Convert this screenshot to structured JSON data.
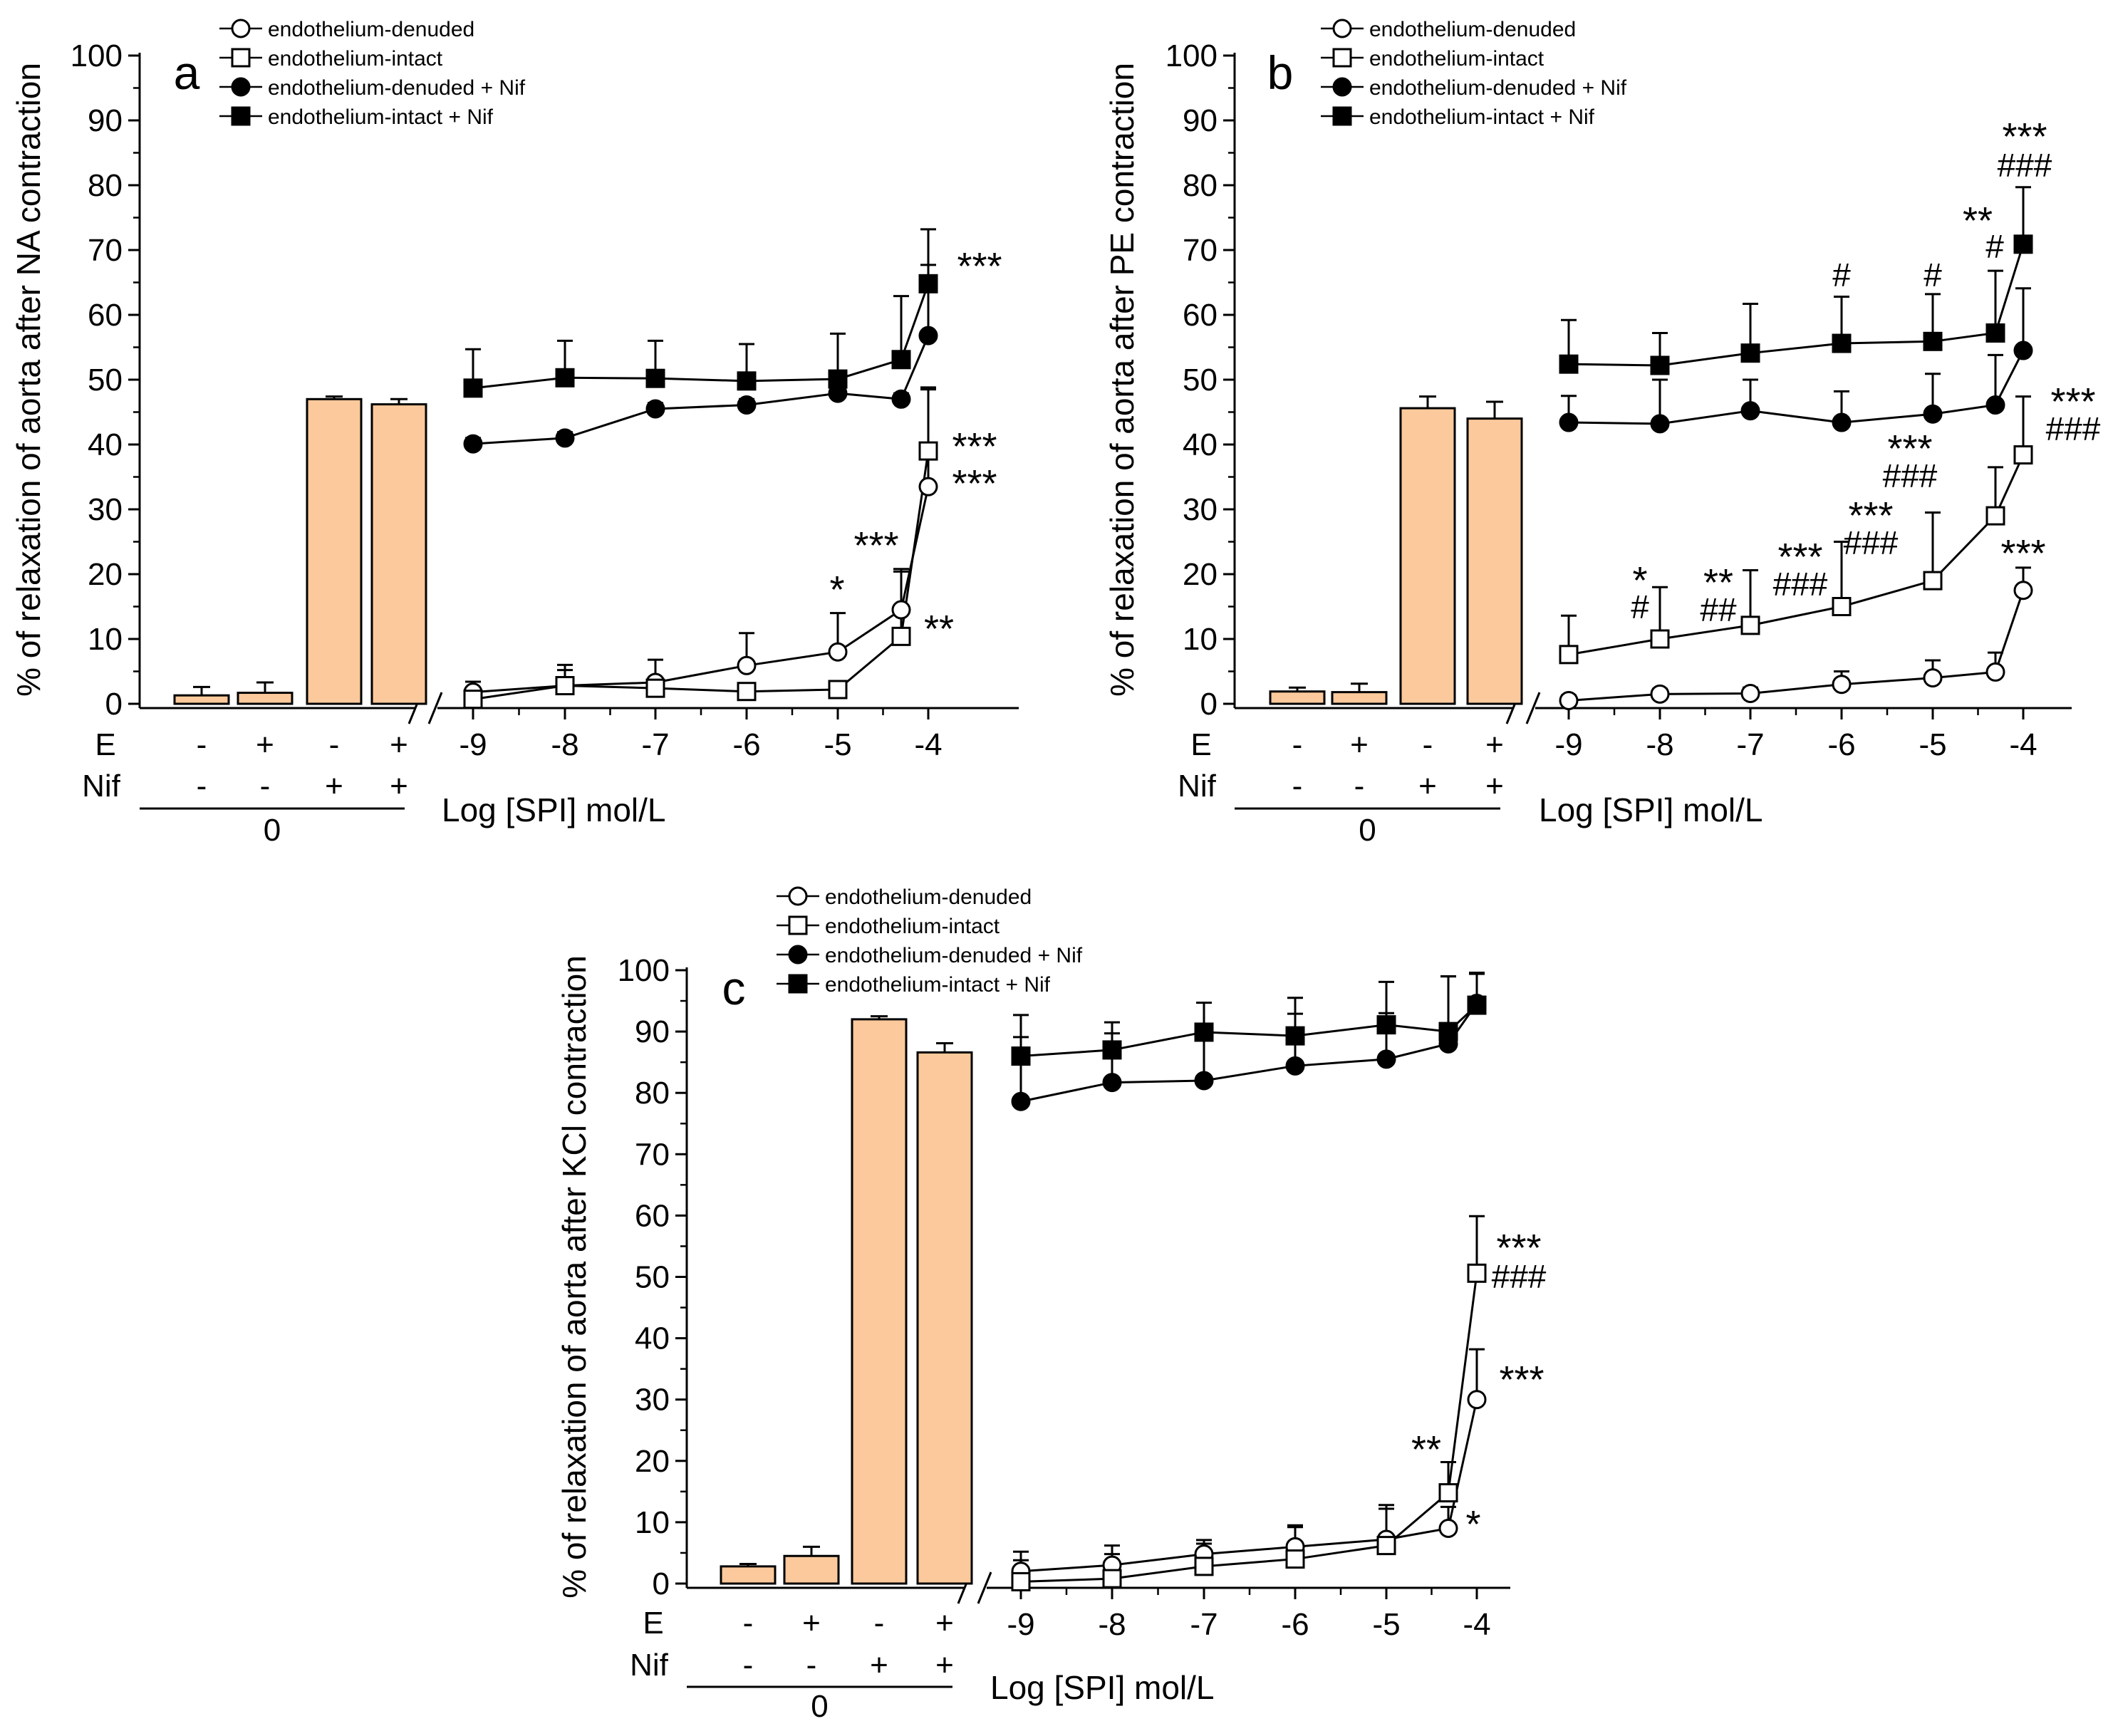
{
  "chart_data": [
    {
      "type": "bar+line",
      "panel": "a",
      "ylabel": "% of relaxation of aorta after NA contraction",
      "xlabel": "Log [SPI] mol/L",
      "ylim": [
        0,
        100
      ],
      "yticks": [
        "0",
        "10",
        "20",
        "30",
        "40",
        "50",
        "60",
        "70",
        "80",
        "90",
        "100"
      ],
      "xticks": [
        "-9",
        "-8",
        "-7",
        "-6",
        "-5",
        "-4"
      ],
      "legend": [
        "endothelium-denuded",
        "endothelium-intact",
        "endothelium-denuded + Nif",
        "endothelium-intact + Nif"
      ],
      "legend_position": "top",
      "bar_rows": {
        "E_label": "E",
        "E": [
          "-",
          "+",
          "-",
          "+"
        ],
        "Nif_label": "Nif",
        "Nif": [
          "-",
          "-",
          "+",
          "+"
        ],
        "group_label": "0"
      },
      "bars": [
        {
          "value": 1.3,
          "err": 1.3
        },
        {
          "value": 1.7,
          "err": 1.6
        },
        {
          "value": 47.0,
          "err": 0.4
        },
        {
          "value": 46.2,
          "err": 0.8
        }
      ],
      "x": [
        -9,
        -8,
        -7,
        -6,
        -5,
        -4.3,
        -4
      ],
      "series": [
        {
          "name": "endothelium-denuded",
          "marker": "open-circle",
          "values": [
            1.8,
            2.8,
            3.3,
            5.9,
            8.0,
            14.5,
            33.5
          ],
          "errors": [
            1.6,
            3.2,
            3.5,
            5.0,
            6.0,
            6.3,
            15.0
          ]
        },
        {
          "name": "endothelium-intact",
          "marker": "open-square",
          "values": [
            0.7,
            2.8,
            2.4,
            1.9,
            2.2,
            10.4,
            39.0
          ],
          "errors": [
            1.5,
            2.4,
            1.5,
            0.5,
            0.8,
            10.0,
            9.8
          ]
        },
        {
          "name": "endothelium-denuded + Nif",
          "marker": "filled-circle",
          "values": [
            40.1,
            41.0,
            45.5,
            46.1,
            47.9,
            47.0,
            56.8
          ],
          "errors": [
            0.9,
            0.9,
            0.9,
            0.9,
            0.9,
            0.9,
            10.9
          ]
        },
        {
          "name": "endothelium-intact + Nif",
          "marker": "filled-square",
          "values": [
            48.7,
            50.3,
            50.2,
            49.8,
            50.1,
            53.1,
            64.8
          ],
          "errors": [
            6.0,
            5.7,
            5.8,
            5.7,
            7.0,
            9.8,
            8.4
          ]
        }
      ],
      "annotations": [
        {
          "text": "***",
          "x": -4,
          "y": 64.8
        },
        {
          "text": "***",
          "x": -4,
          "y": 39.0
        },
        {
          "text": "***",
          "x": -4,
          "y": 33.5
        },
        {
          "text": "**",
          "x": -4,
          "y": 10.4
        },
        {
          "text": "***",
          "x": -4.3,
          "y": 21.0
        },
        {
          "text": "*",
          "x": -5,
          "y": 14.0
        }
      ]
    },
    {
      "type": "bar+line",
      "panel": "b",
      "ylabel": "% of relaxation of aorta after PE contraction",
      "xlabel": "Log [SPI] mol/L",
      "ylim": [
        0,
        100
      ],
      "yticks": [
        "0",
        "10",
        "20",
        "30",
        "40",
        "50",
        "60",
        "70",
        "80",
        "90",
        "100"
      ],
      "xticks": [
        "-9",
        "-8",
        "-7",
        "-6",
        "-5",
        "-4"
      ],
      "legend": [
        "endothelium-denuded",
        "endothelium-intact",
        "endothelium-denuded + Nif",
        "endothelium-intact + Nif"
      ],
      "legend_position": "top",
      "bar_rows": {
        "E_label": "E",
        "E": [
          "-",
          "+",
          "-",
          "+"
        ],
        "Nif_label": "Nif",
        "Nif": [
          "-",
          "-",
          "+",
          "+"
        ],
        "group_label": "0"
      },
      "bars": [
        {
          "value": 1.9,
          "err": 0.6
        },
        {
          "value": 1.8,
          "err": 1.3
        },
        {
          "value": 45.6,
          "err": 1.8
        },
        {
          "value": 44.0,
          "err": 2.6
        }
      ],
      "x": [
        -9,
        -8,
        -7,
        -6,
        -5,
        -4.3,
        -4
      ],
      "series": [
        {
          "name": "endothelium-denuded",
          "marker": "open-circle",
          "values": [
            0.5,
            1.5,
            1.6,
            3.0,
            4.0,
            4.9,
            17.5
          ],
          "errors": [
            0.8,
            0.8,
            0.9,
            2.0,
            2.7,
            3.0,
            3.5
          ]
        },
        {
          "name": "endothelium-intact",
          "marker": "open-square",
          "values": [
            7.6,
            10.0,
            12.1,
            15.0,
            19.0,
            29.0,
            38.4
          ],
          "errors": [
            6.0,
            8.0,
            8.5,
            10.0,
            10.5,
            7.5,
            9.0
          ]
        },
        {
          "name": "endothelium-denuded + Nif",
          "marker": "filled-circle",
          "values": [
            43.4,
            43.2,
            45.2,
            43.4,
            44.7,
            46.1,
            54.5
          ],
          "errors": [
            4.1,
            6.8,
            4.8,
            4.8,
            6.2,
            7.7,
            9.6
          ]
        },
        {
          "name": "endothelium-intact + Nif",
          "marker": "filled-square",
          "values": [
            52.4,
            52.2,
            54.1,
            55.6,
            55.9,
            57.2,
            70.9
          ],
          "errors": [
            6.8,
            5.0,
            7.6,
            7.2,
            7.3,
            9.6,
            8.8
          ]
        }
      ],
      "annotations": [
        {
          "text": "***",
          "x": -4,
          "y": 70.9
        },
        {
          "text": "###",
          "x": -4,
          "y": 70.9
        },
        {
          "text": "**",
          "x": -4.3,
          "y": 57.2
        },
        {
          "text": "#",
          "x": -4.3,
          "y": 57.2
        },
        {
          "text": "#",
          "x": -6,
          "y": 55.6
        },
        {
          "text": "#",
          "x": -5,
          "y": 55.9
        },
        {
          "text": "***",
          "x": -4,
          "y": 38.4
        },
        {
          "text": "###",
          "x": -4,
          "y": 38.4
        },
        {
          "text": "***",
          "x": -5,
          "y": 19.0
        },
        {
          "text": "###",
          "x": -5,
          "y": 19.0
        },
        {
          "text": "***",
          "x": -6,
          "y": 15.0
        },
        {
          "text": "###",
          "x": -6,
          "y": 15.0
        },
        {
          "text": "***",
          "x": -7,
          "y": 12.1
        },
        {
          "text": "###",
          "x": -7,
          "y": 12.1
        },
        {
          "text": "**",
          "x": -7,
          "y": 12.1
        },
        {
          "text": "##",
          "x": -7,
          "y": 12.1
        },
        {
          "text": "*",
          "x": -8,
          "y": 10.0
        },
        {
          "text": "#",
          "x": -8,
          "y": 10.0
        },
        {
          "text": "***",
          "x": -4,
          "y": 17.5
        }
      ]
    },
    {
      "type": "bar+line",
      "panel": "c",
      "ylabel": "% of relaxation of aorta after KCl contraction",
      "xlabel": "Log [SPI] mol/L",
      "ylim": [
        0,
        100
      ],
      "yticks": [
        "0",
        "10",
        "20",
        "30",
        "40",
        "50",
        "60",
        "70",
        "80",
        "90",
        "100"
      ],
      "xticks": [
        "-9",
        "-8",
        "-7",
        "-6",
        "-5",
        "-4"
      ],
      "legend": [
        "endothelium-denuded",
        "endothelium-intact",
        "endothelium-denuded + Nif",
        "endothelium-intact + Nif"
      ],
      "legend_position": "top",
      "bar_rows": {
        "E_label": "E",
        "E": [
          "-",
          "+",
          "-",
          "+"
        ],
        "Nif_label": "Nif",
        "Nif": [
          "-",
          "-",
          "+",
          "+"
        ],
        "group_label": "0"
      },
      "bars": [
        {
          "value": 2.8,
          "err": 0.4
        },
        {
          "value": 4.5,
          "err": 1.5
        },
        {
          "value": 92.0,
          "err": 0.5
        },
        {
          "value": 86.6,
          "err": 1.5
        }
      ],
      "x": [
        -9,
        -8,
        -7,
        -6,
        -5,
        -4.3,
        -4
      ],
      "series": [
        {
          "name": "endothelium-denuded",
          "marker": "open-circle",
          "values": [
            2.0,
            3.0,
            4.8,
            6.0,
            7.2,
            9.0,
            30.0
          ],
          "errors": [
            3.2,
            3.2,
            2.3,
            3.5,
            5.6,
            3.5,
            8.2
          ]
        },
        {
          "name": "endothelium-intact",
          "marker": "open-square",
          "values": [
            0.3,
            0.8,
            2.8,
            4.0,
            6.2,
            14.8,
            50.6
          ],
          "errors": [
            3.5,
            4.0,
            3.7,
            5.2,
            6.0,
            5.0,
            9.3
          ]
        },
        {
          "name": "endothelium-denuded + Nif",
          "marker": "filled-circle",
          "values": [
            78.6,
            81.7,
            82.0,
            84.4,
            85.5,
            88.0,
            94.6
          ],
          "errors": [
            10.5,
            8.0,
            8.0,
            8.5,
            7.5,
            11.0,
            4.8
          ]
        },
        {
          "name": "endothelium-intact + Nif",
          "marker": "filled-square",
          "values": [
            86.0,
            87.0,
            89.9,
            89.3,
            91.1,
            90.0,
            94.3
          ],
          "errors": [
            6.7,
            4.5,
            4.8,
            6.2,
            7.0,
            9.0,
            5.3
          ]
        }
      ],
      "annotations": [
        {
          "text": "***",
          "x": -4,
          "y": 50.6
        },
        {
          "text": "###",
          "x": -4,
          "y": 50.6
        },
        {
          "text": "***",
          "x": -4,
          "y": 30.0
        },
        {
          "text": "**",
          "x": -4.3,
          "y": 14.8
        },
        {
          "text": "*",
          "x": -4.3,
          "y": 9.0
        }
      ]
    }
  ]
}
